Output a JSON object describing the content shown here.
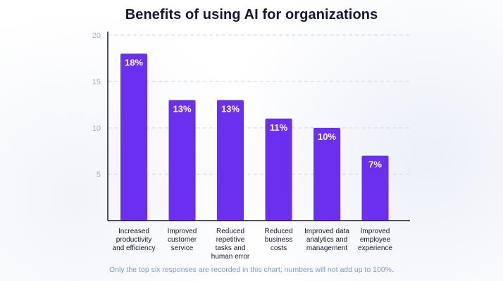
{
  "title": "Benefits of using AI for organizations",
  "footnote": "Only the top six responses are recorded in this chart; numbers will not add up to 100%.",
  "chart_data": {
    "type": "bar",
    "title": "Benefits of using AI for organizations",
    "xlabel": "",
    "ylabel": "",
    "ylim": [
      0,
      20
    ],
    "yticks": [
      5,
      10,
      15,
      20
    ],
    "grid": true,
    "bar_color": "#6b2ff0",
    "categories": [
      [
        "Increased",
        "productivity",
        "and efficiency"
      ],
      [
        "Improved",
        "customer",
        "service"
      ],
      [
        "Reduced",
        "repetitive",
        "tasks and",
        "human error"
      ],
      [
        "Reduced",
        "business",
        "costs"
      ],
      [
        "Improved data",
        "analytics and",
        "management"
      ],
      [
        "Improved",
        "employee",
        "experience"
      ]
    ],
    "values": [
      18,
      13,
      13,
      11,
      10,
      7
    ],
    "data_labels": [
      "18%",
      "13%",
      "13%",
      "11%",
      "10%",
      "7%"
    ]
  }
}
